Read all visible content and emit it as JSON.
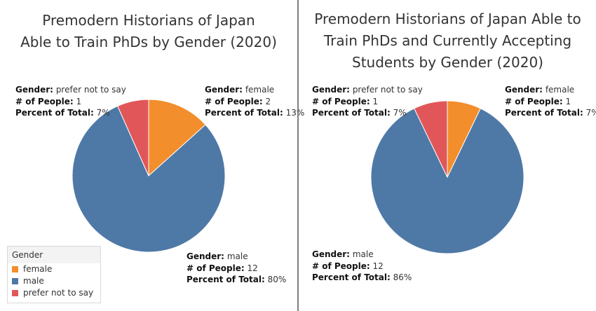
{
  "colors": {
    "female": "#f28e2b",
    "male": "#4e79a7",
    "prefer not to say": "#e15759"
  },
  "labels": {
    "gender": "Gender:",
    "people": "# of People:",
    "percent": "Percent of Total:"
  },
  "legend": {
    "title": "Gender",
    "items": [
      "female",
      "male",
      "prefer not to say"
    ]
  },
  "chart_data": [
    {
      "type": "pie",
      "title": "Premodern Historians of Japan\nAble to Train PhDs by Gender (2020)",
      "slices": [
        {
          "gender": "female",
          "people": "2",
          "percent": "13%",
          "value": 2
        },
        {
          "gender": "male",
          "people": "12",
          "percent": "80%",
          "value": 12
        },
        {
          "gender": "prefer not to say",
          "people": "1",
          "percent": "7%",
          "value": 1
        }
      ]
    },
    {
      "type": "pie",
      "title": "Premodern Historians of Japan Able to\nTrain PhDs and Currently Accepting\nStudents by Gender (2020)",
      "slices": [
        {
          "gender": "female",
          "people": "1",
          "percent": "7%",
          "value": 1
        },
        {
          "gender": "male",
          "people": "12",
          "percent": "86%",
          "value": 12
        },
        {
          "gender": "prefer not to say",
          "people": "1",
          "percent": "7%",
          "value": 1
        }
      ]
    }
  ]
}
